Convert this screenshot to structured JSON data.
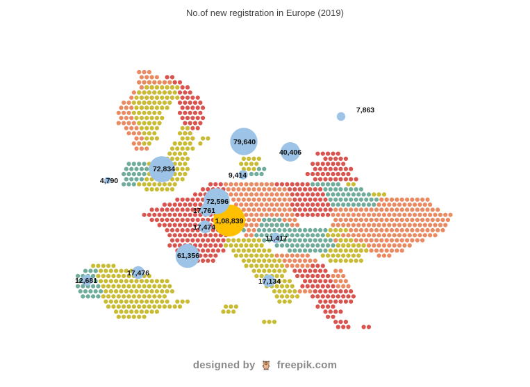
{
  "chart_data": {
    "type": "scatter",
    "title": "No.of new registration in Europe (2019)",
    "bubbles": [
      {
        "value": 108839,
        "label": "1,08,839",
        "color": "#ffc000"
      },
      {
        "value": 79640,
        "label": "79,640",
        "color": "#9dc3e6"
      },
      {
        "value": 72834,
        "label": "72,834",
        "color": "#9dc3e6"
      },
      {
        "value": 72596,
        "label": "72,596",
        "color": "#9dc3e6"
      },
      {
        "value": 61356,
        "label": "61,356",
        "color": "#9dc3e6"
      },
      {
        "value": 40406,
        "label": "40,406",
        "color": "#9dc3e6"
      },
      {
        "value": 17761,
        "label": "17,761",
        "color": "#9dc3e6"
      },
      {
        "value": 17476,
        "label": "17,476",
        "color": "#9dc3e6"
      },
      {
        "value": 17474,
        "label": "17,474",
        "color": "#9dc3e6"
      },
      {
        "value": 17134,
        "label": "17,134",
        "color": "#9dc3e6"
      },
      {
        "value": 12681,
        "label": "12,681",
        "color": "#9dc3e6"
      },
      {
        "value": 11417,
        "label": "11,417",
        "color": "#9dc3e6"
      },
      {
        "value": 9414,
        "label": "9,414",
        "color": "#9dc3e6"
      },
      {
        "value": 7863,
        "label": "7,863",
        "color": "#9dc3e6"
      },
      {
        "value": 4790,
        "label": "4,790",
        "color": "#9dc3e6"
      }
    ],
    "map_colors": {
      "olive": "#c9bb33",
      "red": "#d9534f",
      "salmon": "#ea8a62",
      "teal": "#6fac9c"
    }
  },
  "credit": {
    "prefix": "designed by",
    "logo": "owl-icon",
    "brand": "freepik.com"
  }
}
